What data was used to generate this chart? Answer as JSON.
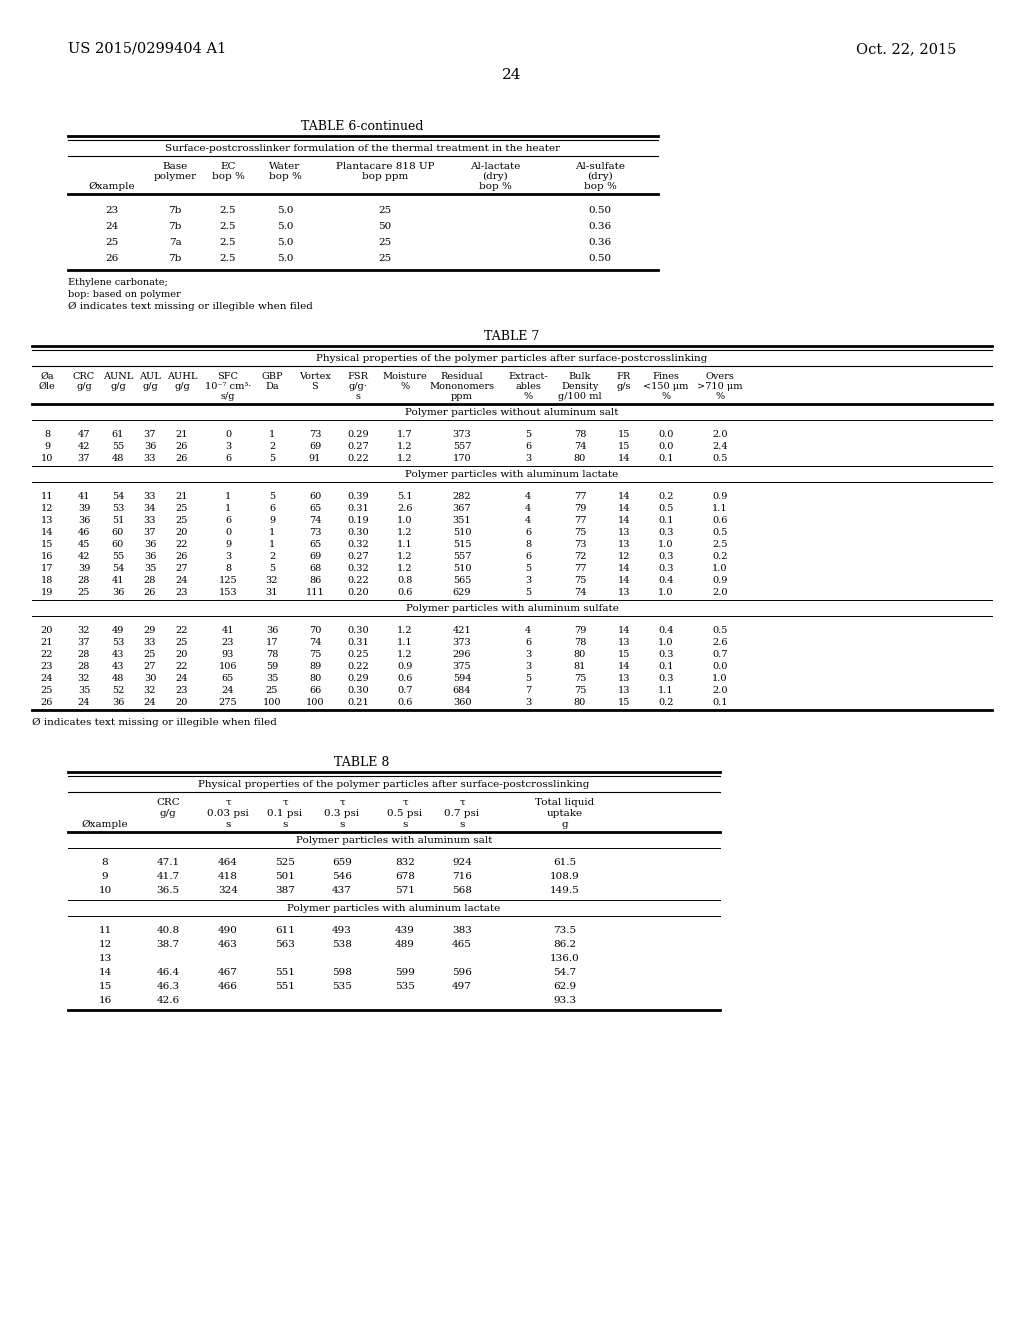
{
  "page_number": "24",
  "patent_left": "US 2015/0299404 A1",
  "patent_right": "Oct. 22, 2015",
  "bg_color": "#ffffff",
  "table6_title": "TABLE 6-continued",
  "table6_subtitle": "Surface-postcrosslinker formulation of the thermal treatment in the heater",
  "table6_footnote1": "Ethylene carbonate;",
  "table6_footnote2": "bop: based on polymer",
  "table6_footnote3": "Ø indicates text missing or illegible when filed",
  "table6_data": [
    [
      "23",
      "7b",
      "2.5",
      "5.0",
      "25",
      "",
      "0.50"
    ],
    [
      "24",
      "7b",
      "2.5",
      "5.0",
      "50",
      "",
      "0.36"
    ],
    [
      "25",
      "7a",
      "2.5",
      "5.0",
      "25",
      "",
      "0.36"
    ],
    [
      "26",
      "7b",
      "2.5",
      "5.0",
      "25",
      "",
      "0.50"
    ]
  ],
  "table7_title": "TABLE 7",
  "table7_subtitle": "Physical properties of the polymer particles after surface-postcrosslinking",
  "table7_footnote": "Ø indicates text missing or illegible when filed",
  "table7_section1_label": "Polymer particles without aluminum salt",
  "table7_section1": [
    [
      "8",
      "47",
      "61",
      "37",
      "21",
      "0",
      "1",
      "73",
      "0.29",
      "1.7",
      "373",
      "5",
      "78",
      "15",
      "0.0",
      "2.0"
    ],
    [
      "9",
      "42",
      "55",
      "36",
      "26",
      "3",
      "2",
      "69",
      "0.27",
      "1.2",
      "557",
      "6",
      "74",
      "15",
      "0.0",
      "2.4"
    ],
    [
      "10",
      "37",
      "48",
      "33",
      "26",
      "6",
      "5",
      "91",
      "0.22",
      "1.2",
      "170",
      "3",
      "80",
      "14",
      "0.1",
      "0.5"
    ]
  ],
  "table7_section2_label": "Polymer particles with aluminum lactate",
  "table7_section2": [
    [
      "11",
      "41",
      "54",
      "33",
      "21",
      "1",
      "5",
      "60",
      "0.39",
      "5.1",
      "282",
      "4",
      "77",
      "14",
      "0.2",
      "0.9"
    ],
    [
      "12",
      "39",
      "53",
      "34",
      "25",
      "1",
      "6",
      "65",
      "0.31",
      "2.6",
      "367",
      "4",
      "79",
      "14",
      "0.5",
      "1.1"
    ],
    [
      "13",
      "36",
      "51",
      "33",
      "25",
      "6",
      "9",
      "74",
      "0.19",
      "1.0",
      "351",
      "4",
      "77",
      "14",
      "0.1",
      "0.6"
    ],
    [
      "14",
      "46",
      "60",
      "37",
      "20",
      "0",
      "1",
      "73",
      "0.30",
      "1.2",
      "510",
      "6",
      "75",
      "13",
      "0.3",
      "0.5"
    ],
    [
      "15",
      "45",
      "60",
      "36",
      "22",
      "9",
      "1",
      "65",
      "0.32",
      "1.1",
      "515",
      "8",
      "73",
      "13",
      "1.0",
      "2.5"
    ],
    [
      "16",
      "42",
      "55",
      "36",
      "26",
      "3",
      "2",
      "69",
      "0.27",
      "1.2",
      "557",
      "6",
      "72",
      "12",
      "0.3",
      "0.2"
    ],
    [
      "17",
      "39",
      "54",
      "35",
      "27",
      "8",
      "5",
      "68",
      "0.32",
      "1.2",
      "510",
      "5",
      "77",
      "14",
      "0.3",
      "1.0"
    ],
    [
      "18",
      "28",
      "41",
      "28",
      "24",
      "125",
      "32",
      "86",
      "0.22",
      "0.8",
      "565",
      "3",
      "75",
      "14",
      "0.4",
      "0.9"
    ],
    [
      "19",
      "25",
      "36",
      "26",
      "23",
      "153",
      "31",
      "111",
      "0.20",
      "0.6",
      "629",
      "5",
      "74",
      "13",
      "1.0",
      "2.0"
    ]
  ],
  "table7_section3_label": "Polymer particles with aluminum sulfate",
  "table7_section3": [
    [
      "20",
      "32",
      "49",
      "29",
      "22",
      "41",
      "36",
      "70",
      "0.30",
      "1.2",
      "421",
      "4",
      "79",
      "14",
      "0.4",
      "0.5"
    ],
    [
      "21",
      "37",
      "53",
      "33",
      "25",
      "23",
      "17",
      "74",
      "0.31",
      "1.1",
      "373",
      "6",
      "78",
      "13",
      "1.0",
      "2.6"
    ],
    [
      "22",
      "28",
      "43",
      "25",
      "20",
      "93",
      "78",
      "75",
      "0.25",
      "1.2",
      "296",
      "3",
      "80",
      "15",
      "0.3",
      "0.7"
    ],
    [
      "23",
      "28",
      "43",
      "27",
      "22",
      "106",
      "59",
      "89",
      "0.22",
      "0.9",
      "375",
      "3",
      "81",
      "14",
      "0.1",
      "0.0"
    ],
    [
      "24",
      "32",
      "48",
      "30",
      "24",
      "65",
      "35",
      "80",
      "0.29",
      "0.6",
      "594",
      "5",
      "75",
      "13",
      "0.3",
      "1.0"
    ],
    [
      "25",
      "35",
      "52",
      "32",
      "23",
      "24",
      "25",
      "66",
      "0.30",
      "0.7",
      "684",
      "7",
      "75",
      "13",
      "1.1",
      "2.0"
    ],
    [
      "26",
      "24",
      "36",
      "24",
      "20",
      "275",
      "100",
      "100",
      "0.21",
      "0.6",
      "360",
      "3",
      "80",
      "15",
      "0.2",
      "0.1"
    ]
  ],
  "table8_title": "TABLE 8",
  "table8_subtitle": "Physical properties of the polymer particles after surface-postcrosslinking",
  "table8_section1_label": "Polymer particles with aluminum salt",
  "table8_section1": [
    [
      "8",
      "47.1",
      "464",
      "525",
      "659",
      "832",
      "924",
      "61.5"
    ],
    [
      "9",
      "41.7",
      "418",
      "501",
      "546",
      "678",
      "716",
      "108.9"
    ],
    [
      "10",
      "36.5",
      "324",
      "387",
      "437",
      "571",
      "568",
      "149.5"
    ]
  ],
  "table8_section2_label": "Polymer particles with aluminum lactate",
  "table8_section2": [
    [
      "11",
      "40.8",
      "490",
      "611",
      "493",
      "439",
      "383",
      "73.5"
    ],
    [
      "12",
      "38.7",
      "463",
      "563",
      "538",
      "489",
      "465",
      "86.2"
    ],
    [
      "13",
      "",
      "",
      "",
      "",
      "",
      "",
      "136.0"
    ],
    [
      "14",
      "46.4",
      "467",
      "551",
      "598",
      "599",
      "596",
      "54.7"
    ],
    [
      "15",
      "46.3",
      "466",
      "551",
      "535",
      "535",
      "497",
      "62.9"
    ],
    [
      "16",
      "42.6",
      "",
      "",
      "",
      "",
      "",
      "93.3"
    ]
  ]
}
